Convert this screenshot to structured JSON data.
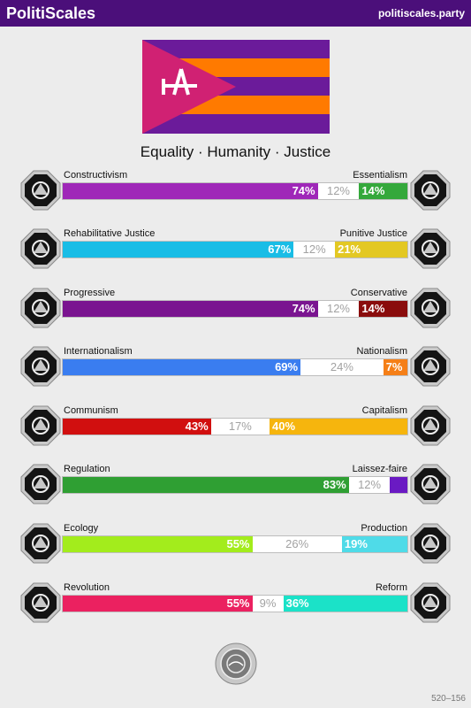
{
  "header": {
    "brand": "PolitiScales",
    "site": "politiscales.party"
  },
  "flag": {
    "colors": [
      "#6b1b9a",
      "#ff7a00",
      "#d02173",
      "#ffffff"
    ]
  },
  "slogan": "Equality · Humanity · Justice",
  "axes": [
    {
      "left_label": "Constructivism",
      "right_label": "Essentialism",
      "left_pct": 74,
      "center_pct": 12,
      "right_pct": 14,
      "left_text": "74%",
      "center_text": "12%",
      "right_text": "14%",
      "left_color": "#9f27b8",
      "right_color": "#34a83b",
      "left_icon": "constructivism-icon",
      "right_icon": "essentialism-icon"
    },
    {
      "left_label": "Rehabilitative Justice",
      "right_label": "Punitive Justice",
      "left_pct": 67,
      "center_pct": 12,
      "right_pct": 21,
      "left_text": "67%",
      "center_text": "12%",
      "right_text": "21%",
      "left_color": "#19bde6",
      "right_color": "#e3c823",
      "left_icon": "handshake-icon",
      "right_icon": "prison-bars-icon"
    },
    {
      "left_label": "Progressive",
      "right_label": "Conservative",
      "left_pct": 74,
      "center_pct": 12,
      "right_pct": 14,
      "left_text": "74%",
      "center_text": "12%",
      "right_text": "14%",
      "left_color": "#7a1490",
      "right_color": "#8a0c0c",
      "left_icon": "progressive-icon",
      "right_icon": "conservative-icon"
    },
    {
      "left_label": "Internationalism",
      "right_label": "Nationalism",
      "left_pct": 69,
      "center_pct": 24,
      "right_pct": 7,
      "left_text": "69%",
      "center_text": "24%",
      "right_text": "7%",
      "left_color": "#3a7df0",
      "right_color": "#f57f17",
      "left_icon": "globe-icon",
      "right_icon": "flag-icon"
    },
    {
      "left_label": "Communism",
      "right_label": "Capitalism",
      "left_pct": 43,
      "center_pct": 17,
      "right_pct": 40,
      "left_text": "43%",
      "center_text": "17%",
      "right_text": "40%",
      "left_color": "#d10f0f",
      "right_color": "#f6b50d",
      "left_icon": "hammer-sickle-icon",
      "right_icon": "money-bag-icon"
    },
    {
      "left_label": "Regulation",
      "right_label": "Laissez-faire",
      "left_pct": 83,
      "center_pct": 12,
      "right_pct": 5,
      "left_text": "83%",
      "center_text": "12%",
      "right_text": "",
      "left_color": "#2f9f33",
      "right_color": "#6a1ac3",
      "left_icon": "regulation-icon",
      "right_icon": "butterfly-icon"
    },
    {
      "left_label": "Ecology",
      "right_label": "Production",
      "left_pct": 55,
      "center_pct": 26,
      "right_pct": 19,
      "left_text": "55%",
      "center_text": "26%",
      "right_text": "19%",
      "left_color": "#a3ec1c",
      "right_color": "#4fdbe8",
      "left_icon": "leaf-icon",
      "right_icon": "factory-icon"
    },
    {
      "left_label": "Revolution",
      "right_label": "Reform",
      "left_pct": 55,
      "center_pct": 9,
      "right_pct": 36,
      "left_text": "55%",
      "center_text": "9%",
      "right_text": "36%",
      "left_color": "#eb2160",
      "right_color": "#1be2c8",
      "left_icon": "revolution-fist-icon",
      "right_icon": "reform-tent-icon"
    }
  ],
  "footer": {
    "text": "520–156"
  }
}
